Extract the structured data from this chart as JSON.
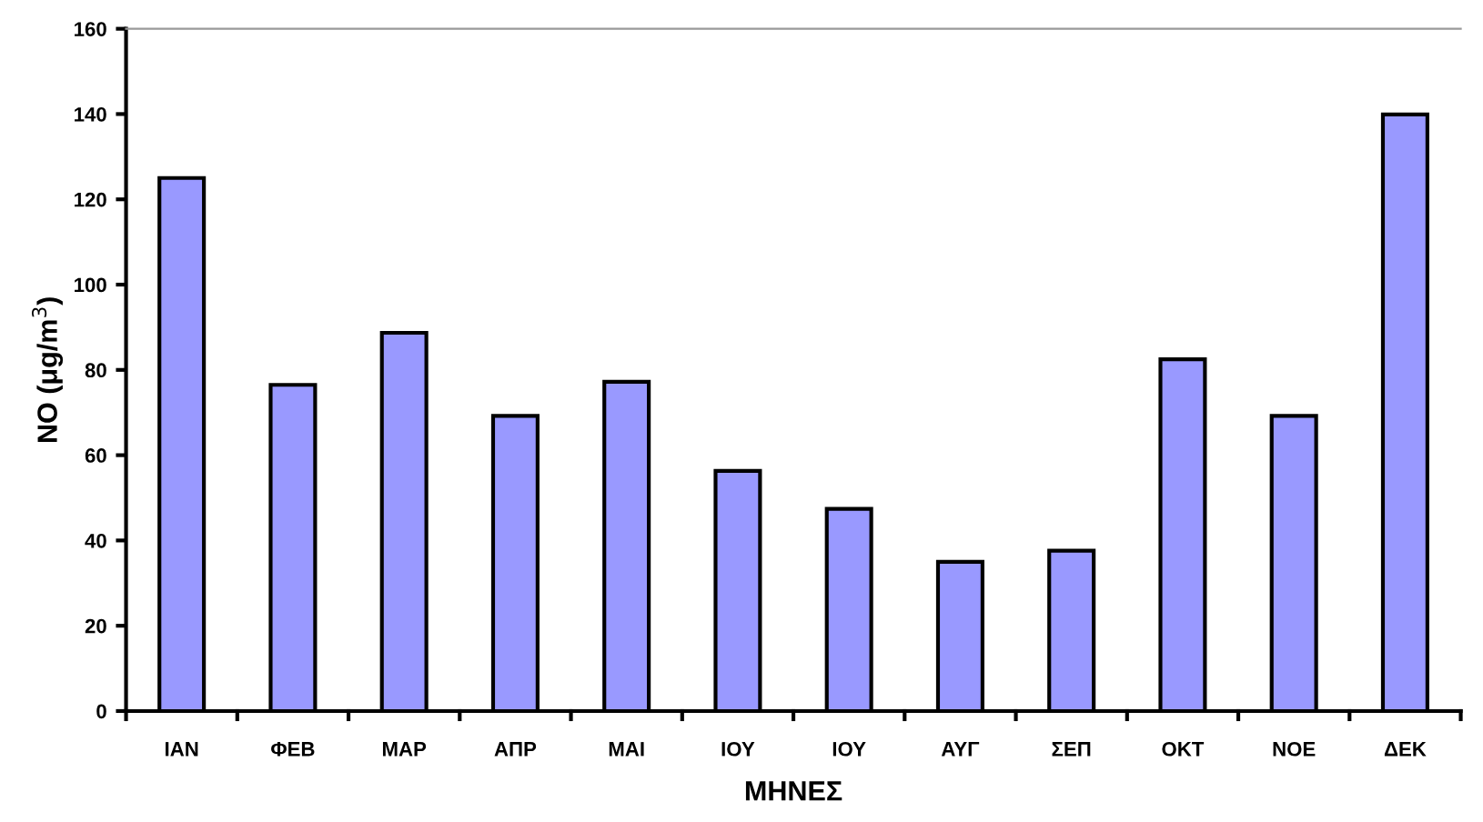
{
  "chart_data": {
    "type": "bar",
    "xlabel": "ΜΗΝΕΣ",
    "ylabel": "NO (μg/m$^{3}$)",
    "categories": [
      "ΙΑΝ",
      "ΦΕΒ",
      "ΜΑΡ",
      "ΑΠΡ",
      "ΜΑΙ",
      "ΙΟΥ",
      "ΙΟΥ",
      "ΑΥΓ",
      "ΣΕΠ",
      "ΟΚΤ",
      "ΝΟΕ",
      "ΔΕΚ"
    ],
    "values": [
      125,
      76.5,
      88.7,
      69.2,
      77.2,
      56.3,
      47.4,
      35.0,
      37.6,
      82.5,
      69.2,
      139.9
    ],
    "color": "#9999ff",
    "ylim": [
      0,
      160
    ],
    "yticks": [
      0,
      20,
      40,
      60,
      80,
      100,
      120,
      140,
      160
    ],
    "grid": false,
    "legend": false
  }
}
